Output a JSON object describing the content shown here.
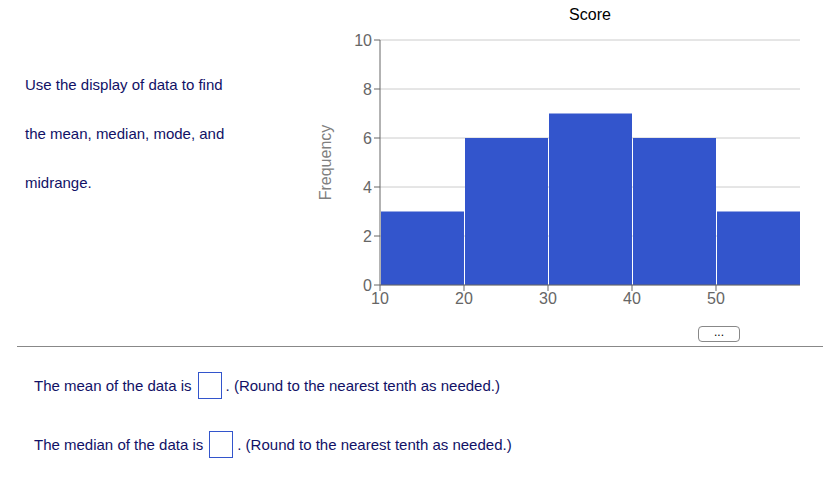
{
  "chart_data": {
    "type": "histogram",
    "title": "Score",
    "ylabel": "Frequency",
    "bins": [
      10,
      20,
      30,
      40,
      50,
      60
    ],
    "values": [
      3,
      6,
      7,
      6,
      3
    ],
    "color": "#3355cc",
    "xlim": [
      10,
      60
    ],
    "xticks": [
      10,
      20,
      30,
      40,
      50
    ],
    "ylim": [
      0,
      10
    ],
    "yticks": [
      0,
      2,
      4,
      6,
      8,
      10
    ],
    "grid": true,
    "annotations": [
      "Use the display of data to find",
      "the mean, median, mode, and",
      "midrange.",
      "...",
      "The mean of the data is",
      ". (Round to the nearest tenth as needed.)",
      "The median of the data is",
      ". (Round to the nearest tenth as needed.)"
    ]
  }
}
